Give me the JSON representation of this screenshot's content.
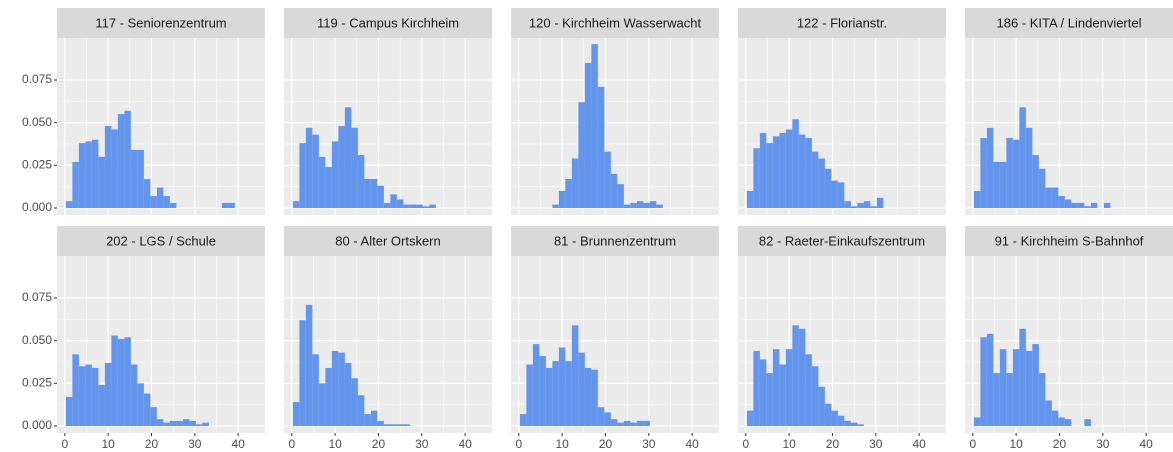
{
  "chart_data": [
    {
      "type": "histogram",
      "title": "117 - Seniorenzentrum",
      "color": "#6495ed",
      "bins": [
        0.25,
        1.75,
        3.25,
        4.75,
        6.25,
        7.75,
        9.25,
        10.75,
        12.25,
        13.75,
        15.25,
        16.75,
        18.25,
        19.75,
        21.25,
        22.75,
        24.25,
        25.75,
        27.25,
        28.75,
        30.25,
        31.75,
        33.25,
        34.75,
        36.25,
        37.75,
        39.25,
        40.75,
        42.25,
        43.75,
        45.25
      ],
      "values": [
        0.004,
        0.027,
        0.038,
        0.039,
        0.04,
        0.03,
        0.048,
        0.046,
        0.055,
        0.057,
        0.034,
        0.034,
        0.017,
        0.007,
        0.012,
        0.007,
        0.003,
        0,
        0,
        0,
        0,
        0,
        0,
        0,
        0.003,
        0.003,
        0,
        0,
        0,
        0
      ],
      "xlim": [
        -1.8,
        46.2
      ],
      "ylim": [
        -0.0041,
        0.0996
      ],
      "xticks": [
        0,
        10,
        20,
        30,
        40
      ],
      "yticks": [
        {
          "value": 0,
          "label": "0.000"
        },
        0.025,
        {
          "value": 0.05,
          "label": "0.050"
        },
        0.075
      ]
    },
    {
      "type": "histogram",
      "title": "119 - Campus Kirchheim",
      "color": "#6495ed",
      "bins": [
        0.25,
        1.75,
        3.25,
        4.75,
        6.25,
        7.75,
        9.25,
        10.75,
        12.25,
        13.75,
        15.25,
        16.75,
        18.25,
        19.75,
        21.25,
        22.75,
        24.25,
        25.75,
        27.25,
        28.75,
        30.25,
        31.75,
        33.25,
        34.75,
        36.25,
        37.75,
        39.25,
        40.75,
        42.25,
        43.75,
        45.25
      ],
      "values": [
        0.004,
        0.038,
        0.047,
        0.043,
        0.03,
        0.024,
        0.039,
        0.048,
        0.059,
        0.047,
        0.031,
        0.017,
        0.017,
        0.013,
        0.003,
        0.008,
        0.005,
        0.002,
        0.002,
        0.002,
        0.001,
        0.002,
        0,
        0,
        0,
        0,
        0,
        0,
        0,
        0
      ],
      "xlim": [
        -1.8,
        46.2
      ],
      "ylim": [
        -0.0041,
        0.0996
      ],
      "xticks": [
        0,
        10,
        20,
        30,
        40
      ],
      "yticks": [
        {
          "value": 0,
          "label": "0.000"
        },
        0.025,
        {
          "value": 0.05,
          "label": "0.050"
        },
        0.075
      ]
    },
    {
      "type": "histogram",
      "title": "120 - Kirchheim Wasserwacht",
      "color": "#6495ed",
      "bins": [
        0.25,
        1.75,
        3.25,
        4.75,
        6.25,
        7.75,
        9.25,
        10.75,
        12.25,
        13.75,
        15.25,
        16.75,
        18.25,
        19.75,
        21.25,
        22.75,
        24.25,
        25.75,
        27.25,
        28.75,
        30.25,
        31.75,
        33.25,
        34.75,
        36.25,
        37.75,
        39.25,
        40.75,
        42.25,
        43.75,
        45.25
      ],
      "values": [
        0,
        0,
        0,
        0,
        0,
        0.002,
        0.01,
        0.017,
        0.029,
        0.062,
        0.085,
        0.096,
        0.071,
        0.033,
        0.02,
        0.014,
        0.002,
        0.003,
        0.004,
        0.003,
        0.004,
        0.002,
        0,
        0,
        0,
        0,
        0,
        0,
        0,
        0
      ],
      "xlim": [
        -1.8,
        46.2
      ],
      "ylim": [
        -0.0041,
        0.0996
      ],
      "xticks": [
        0,
        10,
        20,
        30,
        40
      ],
      "yticks": [
        {
          "value": 0,
          "label": "0.000"
        },
        0.025,
        {
          "value": 0.05,
          "label": "0.050"
        },
        0.075
      ]
    },
    {
      "type": "histogram",
      "title": "122 - Florianstr.",
      "color": "#6495ed",
      "bins": [
        0.25,
        1.75,
        3.25,
        4.75,
        6.25,
        7.75,
        9.25,
        10.75,
        12.25,
        13.75,
        15.25,
        16.75,
        18.25,
        19.75,
        21.25,
        22.75,
        24.25,
        25.75,
        27.25,
        28.75,
        30.25,
        31.75,
        33.25,
        34.75,
        36.25,
        37.75,
        39.25,
        40.75,
        42.25,
        43.75,
        45.25
      ],
      "values": [
        0.01,
        0.035,
        0.044,
        0.038,
        0.042,
        0.044,
        0.046,
        0.052,
        0.043,
        0.041,
        0.033,
        0.029,
        0.023,
        0.016,
        0.015,
        0.004,
        0.001,
        0.003,
        0.004,
        0.001,
        0.006,
        0,
        0,
        0,
        0,
        0,
        0,
        0,
        0,
        0
      ],
      "xlim": [
        -1.8,
        46.2
      ],
      "ylim": [
        -0.0041,
        0.0996
      ],
      "xticks": [
        0,
        10,
        20,
        30,
        40
      ],
      "yticks": [
        {
          "value": 0,
          "label": "0.000"
        },
        0.025,
        {
          "value": 0.05,
          "label": "0.050"
        },
        0.075
      ]
    },
    {
      "type": "histogram",
      "title": "186 - KITA / Lindenviertel",
      "color": "#6495ed",
      "bins": [
        0.25,
        1.75,
        3.25,
        4.75,
        6.25,
        7.75,
        9.25,
        10.75,
        12.25,
        13.75,
        15.25,
        16.75,
        18.25,
        19.75,
        21.25,
        22.75,
        24.25,
        25.75,
        27.25,
        28.75,
        30.25,
        31.75,
        33.25,
        34.75,
        36.25,
        37.75,
        39.25,
        40.75,
        42.25,
        43.75,
        45.25
      ],
      "values": [
        0.01,
        0.041,
        0.047,
        0.027,
        0.027,
        0.041,
        0.04,
        0.059,
        0.047,
        0.031,
        0.023,
        0.012,
        0.012,
        0.007,
        0.005,
        0.003,
        0.003,
        0.001,
        0.003,
        0,
        0.003,
        0,
        0,
        0,
        0,
        0,
        0,
        0,
        0,
        0
      ],
      "xlim": [
        -1.8,
        46.2
      ],
      "ylim": [
        -0.0041,
        0.0996
      ],
      "xticks": [
        0,
        10,
        20,
        30,
        40
      ],
      "yticks": [
        {
          "value": 0,
          "label": "0.000"
        },
        0.025,
        {
          "value": 0.05,
          "label": "0.050"
        },
        0.075
      ]
    },
    {
      "type": "histogram",
      "title": "202 - LGS / Schule",
      "color": "#6495ed",
      "bins": [
        0.25,
        1.75,
        3.25,
        4.75,
        6.25,
        7.75,
        9.25,
        10.75,
        12.25,
        13.75,
        15.25,
        16.75,
        18.25,
        19.75,
        21.25,
        22.75,
        24.25,
        25.75,
        27.25,
        28.75,
        30.25,
        31.75,
        33.25,
        34.75,
        36.25,
        37.75,
        39.25,
        40.75,
        42.25,
        43.75,
        45.25
      ],
      "values": [
        0.017,
        0.042,
        0.035,
        0.036,
        0.034,
        0.024,
        0.037,
        0.053,
        0.051,
        0.052,
        0.036,
        0.025,
        0.019,
        0.011,
        0.004,
        0.002,
        0.003,
        0.003,
        0.004,
        0.003,
        0.001,
        0.002,
        0,
        0,
        0,
        0,
        0,
        0,
        0,
        0
      ],
      "xlim": [
        -1.8,
        46.2
      ],
      "ylim": [
        -0.0041,
        0.0996
      ],
      "xticks": [
        0,
        10,
        20,
        30,
        40
      ],
      "yticks": [
        {
          "value": 0,
          "label": "0.000"
        },
        0.025,
        {
          "value": 0.05,
          "label": "0.050"
        },
        0.075
      ]
    },
    {
      "type": "histogram",
      "title": "80 - Alter Ortskern",
      "color": "#6495ed",
      "bins": [
        0.25,
        1.75,
        3.25,
        4.75,
        6.25,
        7.75,
        9.25,
        10.75,
        12.25,
        13.75,
        15.25,
        16.75,
        18.25,
        19.75,
        21.25,
        22.75,
        24.25,
        25.75,
        27.25,
        28.75,
        30.25,
        31.75,
        33.25,
        34.75,
        36.25,
        37.75,
        39.25,
        40.75,
        42.25,
        43.75,
        45.25
      ],
      "values": [
        0.014,
        0.062,
        0.071,
        0.042,
        0.025,
        0.034,
        0.044,
        0.043,
        0.037,
        0.028,
        0.018,
        0.007,
        0.009,
        0.003,
        0.001,
        0.001,
        0.001,
        0.001,
        0,
        0,
        0,
        0,
        0,
        0,
        0,
        0,
        0,
        0,
        0,
        0
      ],
      "xlim": [
        -1.8,
        46.2
      ],
      "ylim": [
        -0.0041,
        0.0996
      ],
      "xticks": [
        0,
        10,
        20,
        30,
        40
      ],
      "yticks": [
        {
          "value": 0,
          "label": "0.000"
        },
        0.025,
        {
          "value": 0.05,
          "label": "0.050"
        },
        0.075
      ]
    },
    {
      "type": "histogram",
      "title": "81 - Brunnenzentrum",
      "color": "#6495ed",
      "bins": [
        0.25,
        1.75,
        3.25,
        4.75,
        6.25,
        7.75,
        9.25,
        10.75,
        12.25,
        13.75,
        15.25,
        16.75,
        18.25,
        19.75,
        21.25,
        22.75,
        24.25,
        25.75,
        27.25,
        28.75,
        30.25,
        31.75,
        33.25,
        34.75,
        36.25,
        37.75,
        39.25,
        40.75,
        42.25,
        43.75,
        45.25
      ],
      "values": [
        0.007,
        0.036,
        0.048,
        0.041,
        0.034,
        0.038,
        0.046,
        0.038,
        0.059,
        0.043,
        0.034,
        0.033,
        0.011,
        0.008,
        0.004,
        0.002,
        0.003,
        0.002,
        0.003,
        0.003,
        0,
        0,
        0,
        0,
        0,
        0,
        0,
        0,
        0,
        0
      ],
      "xlim": [
        -1.8,
        46.2
      ],
      "ylim": [
        -0.0041,
        0.0996
      ],
      "xticks": [
        0,
        10,
        20,
        30,
        40
      ],
      "yticks": [
        {
          "value": 0,
          "label": "0.000"
        },
        0.025,
        {
          "value": 0.05,
          "label": "0.050"
        },
        0.075
      ]
    },
    {
      "type": "histogram",
      "title": "82 - Raeter-Einkaufszentrum",
      "color": "#6495ed",
      "bins": [
        0.25,
        1.75,
        3.25,
        4.75,
        6.25,
        7.75,
        9.25,
        10.75,
        12.25,
        13.75,
        15.25,
        16.75,
        18.25,
        19.75,
        21.25,
        22.75,
        24.25,
        25.75,
        27.25,
        28.75,
        30.25,
        31.75,
        33.25,
        34.75,
        36.25,
        37.75,
        39.25,
        40.75,
        42.25,
        43.75,
        45.25
      ],
      "values": [
        0.009,
        0.044,
        0.039,
        0.031,
        0.045,
        0.036,
        0.045,
        0.059,
        0.057,
        0.042,
        0.035,
        0.023,
        0.013,
        0.009,
        0.006,
        0.003,
        0.002,
        0.001,
        0,
        0,
        0,
        0,
        0,
        0,
        0,
        0,
        0,
        0,
        0,
        0
      ],
      "xlim": [
        -1.8,
        46.2
      ],
      "ylim": [
        -0.0041,
        0.0996
      ],
      "xticks": [
        0,
        10,
        20,
        30,
        40
      ],
      "yticks": [
        {
          "value": 0,
          "label": "0.000"
        },
        0.025,
        {
          "value": 0.05,
          "label": "0.050"
        },
        0.075
      ]
    },
    {
      "type": "histogram",
      "title": "91 - Kirchheim S-Bahnhof",
      "color": "#6495ed",
      "bins": [
        0.25,
        1.75,
        3.25,
        4.75,
        6.25,
        7.75,
        9.25,
        10.75,
        12.25,
        13.75,
        15.25,
        16.75,
        18.25,
        19.75,
        21.25,
        22.75,
        24.25,
        25.75,
        27.25,
        28.75,
        30.25,
        31.75,
        33.25,
        34.75,
        36.25,
        37.75,
        39.25,
        40.75,
        42.25,
        43.75,
        45.25
      ],
      "values": [
        0.005,
        0.052,
        0.054,
        0.031,
        0.045,
        0.031,
        0.045,
        0.057,
        0.044,
        0.048,
        0.031,
        0.015,
        0.009,
        0.005,
        0.004,
        0,
        0,
        0.004,
        0,
        0,
        0,
        0,
        0,
        0,
        0,
        0,
        0,
        0,
        0,
        0
      ],
      "xlim": [
        -1.8,
        46.2
      ],
      "ylim": [
        -0.0041,
        0.0996
      ],
      "xticks": [
        0,
        10,
        20,
        30,
        40
      ],
      "yticks": [
        {
          "value": 0,
          "label": "0.000"
        },
        0.025,
        {
          "value": 0.05,
          "label": "0.050"
        },
        0.075
      ]
    }
  ]
}
